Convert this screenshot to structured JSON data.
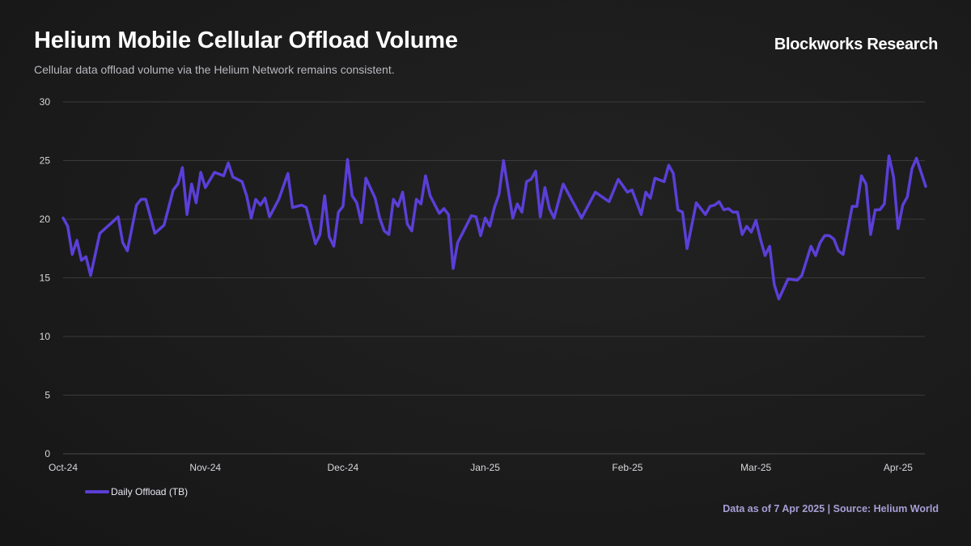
{
  "header": {
    "title": "Helium Mobile Cellular Offload Volume",
    "subtitle": "Cellular data offload volume via the Helium Network remains consistent.",
    "brand": "Blockworks Research"
  },
  "footer": {
    "source": "Data as of 7 Apr 2025 | Source: Helium World"
  },
  "colors": {
    "line": "#5b3fd8",
    "grid": "#3a3a3a",
    "background": "#1c1c1c"
  },
  "chart_data": {
    "type": "line",
    "title": "Helium Mobile Cellular Offload Volume",
    "xlabel": "",
    "ylabel": "",
    "x_unit": "days since 2024-10-01",
    "xlim": [
      0,
      188
    ],
    "ylim": [
      0,
      30
    ],
    "yticks": [
      0,
      5,
      10,
      15,
      20,
      25,
      30
    ],
    "xticks": [
      {
        "day": 0,
        "label": "Oct-24"
      },
      {
        "day": 31,
        "label": "Nov-24"
      },
      {
        "day": 61,
        "label": "Dec-24"
      },
      {
        "day": 92,
        "label": "Jan-25"
      },
      {
        "day": 123,
        "label": "Feb-25"
      },
      {
        "day": 151,
        "label": "Mar-25"
      },
      {
        "day": 182,
        "label": "Apr-25"
      }
    ],
    "grid": true,
    "legend_position": "bottom-left",
    "series": [
      {
        "name": "Daily Offload (TB)",
        "points": [
          [
            0,
            20.1
          ],
          [
            1,
            19.4
          ],
          [
            2,
            17.0
          ],
          [
            3,
            18.2
          ],
          [
            4,
            16.5
          ],
          [
            5,
            16.8
          ],
          [
            6,
            15.2
          ],
          [
            8,
            18.8
          ],
          [
            10,
            19.5
          ],
          [
            12,
            20.2
          ],
          [
            13,
            18.0
          ],
          [
            14,
            17.3
          ],
          [
            16,
            21.2
          ],
          [
            17,
            21.7
          ],
          [
            18,
            21.7
          ],
          [
            20,
            18.8
          ],
          [
            22,
            19.5
          ],
          [
            24,
            22.5
          ],
          [
            25,
            23.0
          ],
          [
            26,
            24.4
          ],
          [
            27,
            20.4
          ],
          [
            28,
            23.0
          ],
          [
            29,
            21.4
          ],
          [
            30,
            24.0
          ],
          [
            31,
            22.7
          ],
          [
            33,
            24.0
          ],
          [
            35,
            23.7
          ],
          [
            36,
            24.8
          ],
          [
            37,
            23.6
          ],
          [
            39,
            23.2
          ],
          [
            40,
            22.0
          ],
          [
            41,
            20.1
          ],
          [
            42,
            21.7
          ],
          [
            43,
            21.2
          ],
          [
            44,
            21.8
          ],
          [
            45,
            20.2
          ],
          [
            47,
            21.7
          ],
          [
            49,
            23.9
          ],
          [
            50,
            21.0
          ],
          [
            52,
            21.2
          ],
          [
            53,
            21.0
          ],
          [
            55,
            17.9
          ],
          [
            56,
            18.7
          ],
          [
            57,
            22.0
          ],
          [
            58,
            18.5
          ],
          [
            59,
            17.7
          ],
          [
            60,
            20.6
          ],
          [
            61,
            21.1
          ],
          [
            62,
            25.1
          ],
          [
            63,
            22.0
          ],
          [
            64,
            21.4
          ],
          [
            65,
            19.7
          ],
          [
            66,
            23.5
          ],
          [
            68,
            21.8
          ],
          [
            69,
            20.1
          ],
          [
            70,
            19.0
          ],
          [
            71,
            18.7
          ],
          [
            72,
            21.7
          ],
          [
            73,
            21.1
          ],
          [
            74,
            22.3
          ],
          [
            75,
            19.6
          ],
          [
            76,
            19.0
          ],
          [
            77,
            21.7
          ],
          [
            78,
            21.3
          ],
          [
            79,
            23.7
          ],
          [
            80,
            22.0
          ],
          [
            82,
            20.5
          ],
          [
            83,
            20.9
          ],
          [
            84,
            20.4
          ],
          [
            85,
            15.8
          ],
          [
            86,
            18.0
          ],
          [
            89,
            20.3
          ],
          [
            90,
            20.2
          ],
          [
            91,
            18.6
          ],
          [
            92,
            20.1
          ],
          [
            93,
            19.4
          ],
          [
            94,
            21.0
          ],
          [
            95,
            22.1
          ],
          [
            96,
            25.0
          ],
          [
            98,
            20.1
          ],
          [
            99,
            21.3
          ],
          [
            100,
            20.6
          ],
          [
            101,
            23.2
          ],
          [
            102,
            23.4
          ],
          [
            103,
            24.1
          ],
          [
            104,
            20.2
          ],
          [
            105,
            22.7
          ],
          [
            106,
            20.9
          ],
          [
            107,
            20.1
          ],
          [
            109,
            23.0
          ],
          [
            113,
            20.1
          ],
          [
            116,
            22.3
          ],
          [
            119,
            21.5
          ],
          [
            121,
            23.4
          ],
          [
            123,
            22.3
          ],
          [
            124,
            22.5
          ],
          [
            126,
            20.4
          ],
          [
            127,
            22.3
          ],
          [
            128,
            21.8
          ],
          [
            129,
            23.5
          ],
          [
            131,
            23.2
          ],
          [
            132,
            24.6
          ],
          [
            133,
            23.9
          ],
          [
            134,
            20.8
          ],
          [
            135,
            20.6
          ],
          [
            136,
            17.5
          ],
          [
            138,
            21.4
          ],
          [
            140,
            20.4
          ],
          [
            141,
            21.1
          ],
          [
            142,
            21.2
          ],
          [
            143,
            21.5
          ],
          [
            144,
            20.8
          ],
          [
            145,
            20.9
          ],
          [
            146,
            20.6
          ],
          [
            147,
            20.6
          ],
          [
            148,
            18.7
          ],
          [
            149,
            19.4
          ],
          [
            150,
            18.9
          ],
          [
            151,
            19.9
          ],
          [
            152,
            18.3
          ],
          [
            153,
            16.9
          ],
          [
            154,
            17.7
          ],
          [
            155,
            14.4
          ],
          [
            156,
            13.2
          ],
          [
            158,
            14.9
          ],
          [
            160,
            14.8
          ],
          [
            161,
            15.2
          ],
          [
            163,
            17.7
          ],
          [
            164,
            16.9
          ],
          [
            165,
            18.0
          ],
          [
            166,
            18.6
          ],
          [
            167,
            18.6
          ],
          [
            168,
            18.3
          ],
          [
            169,
            17.3
          ],
          [
            170,
            17.0
          ],
          [
            172,
            21.1
          ],
          [
            173,
            21.1
          ],
          [
            174,
            23.7
          ],
          [
            175,
            23.0
          ],
          [
            176,
            18.7
          ],
          [
            177,
            20.8
          ],
          [
            178,
            20.8
          ],
          [
            179,
            21.3
          ],
          [
            180,
            25.4
          ],
          [
            181,
            23.6
          ],
          [
            182,
            19.2
          ],
          [
            183,
            21.2
          ],
          [
            184,
            21.9
          ],
          [
            185,
            24.3
          ],
          [
            186,
            25.2
          ],
          [
            188,
            22.8
          ]
        ]
      }
    ]
  }
}
